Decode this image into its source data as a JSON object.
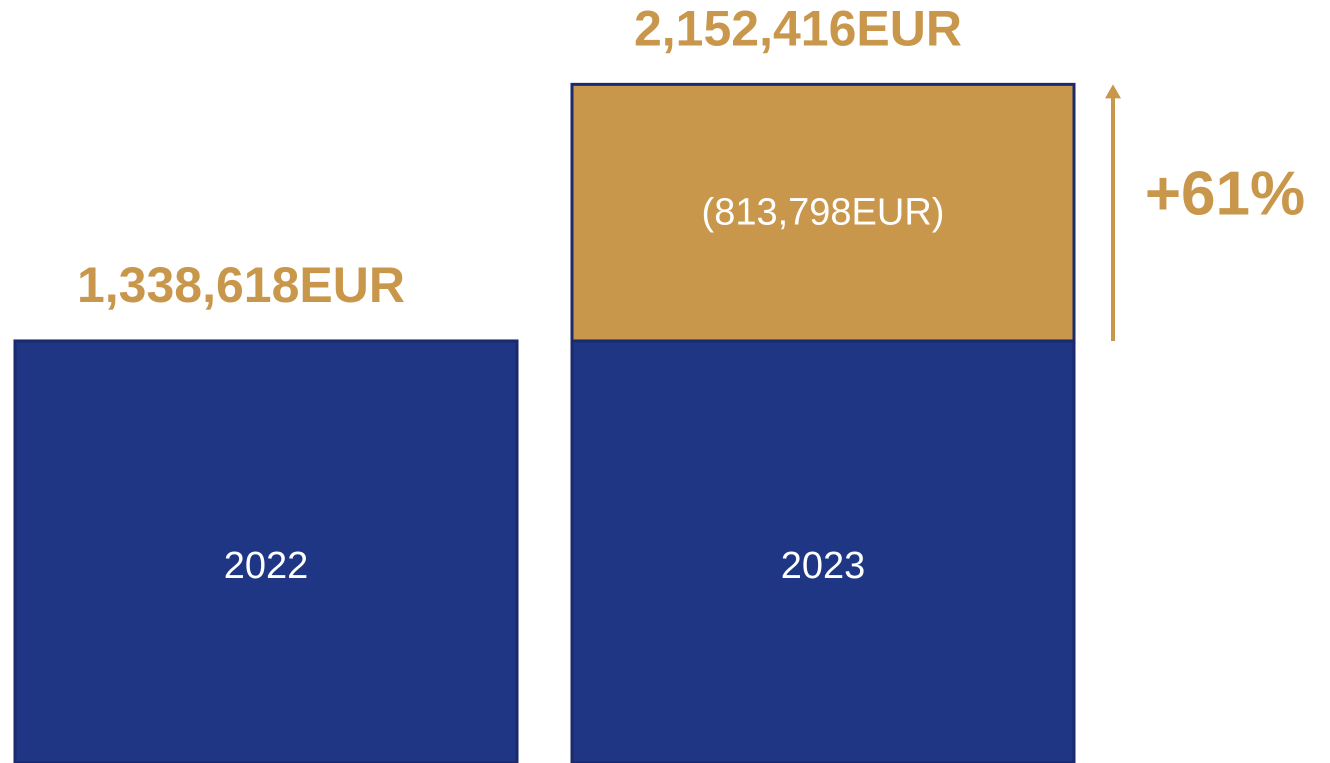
{
  "chart_data": {
    "type": "bar",
    "stacked": true,
    "categories": [
      "2022",
      "2023"
    ],
    "series": [
      {
        "color": "#1f3685",
        "values": [
          1338618,
          1338618
        ]
      },
      {
        "color": "#c9974b",
        "values": [
          null,
          813798
        ],
        "value_labels": [
          null,
          "(813,798EUR)"
        ]
      }
    ],
    "totals": {
      "values": [
        1338618,
        2152416
      ],
      "value_labels": [
        "1,338,618EUR",
        "2,152,416EUR"
      ]
    },
    "annotation": "+61%",
    "ylim": [
      0,
      2420000
    ]
  }
}
